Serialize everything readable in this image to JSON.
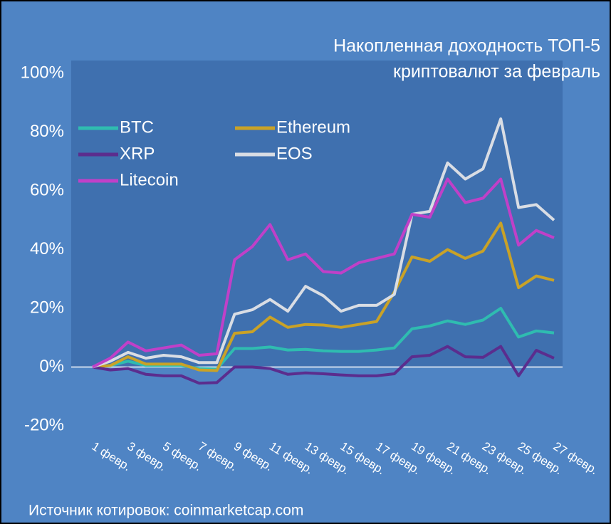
{
  "chart_data": {
    "type": "line",
    "title": [
      "Накопленная доходность ТОП-5",
      "криптовалют за февраль"
    ],
    "source": "Источник котировок: coinmarketcap.com",
    "categories": [
      "1 февр.",
      null,
      "3 февр.",
      null,
      "5 февр.",
      null,
      "7 февр.",
      null,
      "9 февр.",
      null,
      "11 февр.",
      null,
      "13 февр.",
      null,
      "15 февр.",
      null,
      "17 февр.",
      null,
      "19 февр.",
      null,
      "21 февр.",
      null,
      "23 февр.",
      null,
      "25 февр.",
      null,
      "27 февр."
    ],
    "series": [
      {
        "name": "BTC",
        "color": "#2fbcb0",
        "values": [
          0,
          0.5,
          2,
          0.5,
          0.5,
          0.5,
          -0.5,
          -0.7,
          6.3,
          6.3,
          6.8,
          5.8,
          6,
          5.5,
          5.3,
          5.3,
          5.8,
          6.5,
          13,
          14,
          15.7,
          14.5,
          16,
          20,
          10.2,
          12.3,
          11.6
        ]
      },
      {
        "name": "Ethereum",
        "color": "#c9a227",
        "values": [
          0,
          0.5,
          3.5,
          1,
          1,
          1,
          -1,
          -1.2,
          11.5,
          12,
          17,
          13.5,
          14.5,
          14.3,
          13.5,
          14.5,
          15.5,
          25.5,
          37.5,
          36,
          40,
          37,
          39.5,
          49,
          27,
          31,
          29.5
        ]
      },
      {
        "name": "XRP",
        "color": "#5b2d8e",
        "values": [
          0,
          -1,
          -0.5,
          -2.5,
          -3,
          -3,
          -5.5,
          -5.3,
          0,
          0,
          -0.5,
          -2.5,
          -2,
          -2.3,
          -2.7,
          -3,
          -3,
          -2.3,
          3.5,
          4,
          7,
          3.5,
          3.3,
          7,
          -3,
          5.7,
          3
        ]
      },
      {
        "name": "EOS",
        "color": "#d9dde4",
        "values": [
          0,
          2,
          5,
          3,
          4,
          3.5,
          1.5,
          1.5,
          18,
          19.5,
          23,
          19,
          27.5,
          24.3,
          19,
          21,
          21,
          24.7,
          52,
          53,
          69.5,
          64,
          67.5,
          84.5,
          54.3,
          55.3,
          50
        ]
      },
      {
        "name": "Litecoin",
        "color": "#c040c8",
        "values": [
          0,
          3,
          8.5,
          5.5,
          6.5,
          7.5,
          4,
          4.5,
          36.5,
          41,
          48.5,
          36.5,
          38.5,
          32.5,
          32,
          35.5,
          37,
          38.5,
          52,
          51,
          64,
          56,
          57.5,
          64,
          41.5,
          46.5,
          44
        ]
      }
    ],
    "ylim": [
      -20,
      100
    ],
    "yticks": [
      {
        "value": -20,
        "label": "-20%"
      },
      {
        "value": 0,
        "label": "0%"
      },
      {
        "value": 20,
        "label": "20%"
      },
      {
        "value": 40,
        "label": "40%"
      },
      {
        "value": 60,
        "label": "60%"
      },
      {
        "value": 80,
        "label": "80%"
      },
      {
        "value": 100,
        "label": "100%"
      }
    ],
    "grid": false,
    "legend": "top-left"
  }
}
